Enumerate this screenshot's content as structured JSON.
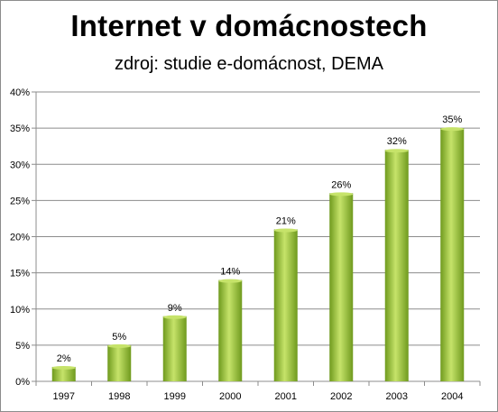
{
  "title": "Internet v domácnostech",
  "subtitle": "zdroj: studie e-domácnost, DEMA",
  "colors": {
    "bar_light": "#c6e36a",
    "bar_mid": "#9ac93a",
    "bar_dark": "#6f9a1e",
    "grid": "#8c8c8c"
  },
  "chart_data": {
    "type": "bar",
    "title": "Internet v domácnostech",
    "subtitle": "zdroj: studie e-domácnost, DEMA",
    "categories": [
      "1997",
      "1998",
      "1999",
      "2000",
      "2001",
      "2002",
      "2003",
      "2004"
    ],
    "values": [
      2,
      5,
      9,
      14,
      21,
      26,
      32,
      35
    ],
    "data_labels": [
      "2%",
      "5%",
      "9%",
      "14%",
      "21%",
      "26%",
      "32%",
      "35%"
    ],
    "ylim": [
      0,
      40
    ],
    "y_ticks": [
      0,
      5,
      10,
      15,
      20,
      25,
      30,
      35,
      40
    ],
    "y_tick_labels": [
      "0%",
      "5%",
      "10%",
      "15%",
      "20%",
      "25%",
      "30%",
      "35%",
      "40%"
    ],
    "grid": true,
    "legend": "none"
  }
}
